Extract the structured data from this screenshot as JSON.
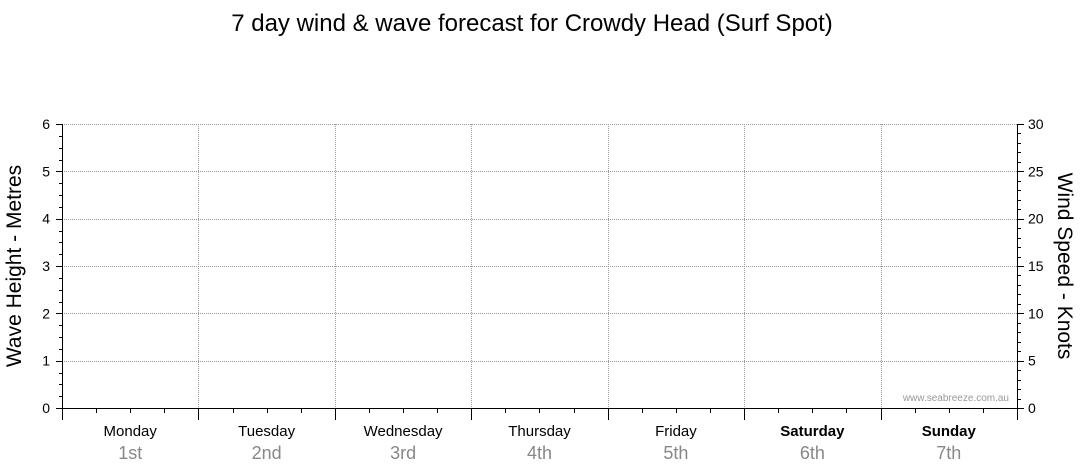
{
  "chart_data": {
    "type": "line",
    "title": "7 day wind & wave forecast for Crowdy Head (Surf Spot)",
    "ylabel_left": "Wave Height - Metres",
    "ylabel_right": "Wind Speed - Knots",
    "left_axis": {
      "ylim": [
        0,
        6
      ],
      "ticks": [
        "0",
        "1",
        "2",
        "3",
        "4",
        "5",
        "6"
      ]
    },
    "right_axis": {
      "ylim": [
        0,
        30
      ],
      "ticks": [
        "0",
        "5",
        "10",
        "15",
        "20",
        "25",
        "30"
      ]
    },
    "days": [
      {
        "name": "Monday",
        "date": "1st",
        "bold": false
      },
      {
        "name": "Tuesday",
        "date": "2nd",
        "bold": false
      },
      {
        "name": "Wednesday",
        "date": "3rd",
        "bold": false
      },
      {
        "name": "Thursday",
        "date": "4th",
        "bold": false
      },
      {
        "name": "Friday",
        "date": "5th",
        "bold": false
      },
      {
        "name": "Saturday",
        "date": "6th",
        "bold": true
      },
      {
        "name": "Sunday",
        "date": "7th",
        "bold": true
      }
    ],
    "series": [],
    "grid": true,
    "watermark": "www.seabreeze.com.au",
    "colors": {
      "grid": "#999999",
      "axis": "#000000",
      "date_text": "#888888",
      "watermark": "#999999"
    }
  }
}
